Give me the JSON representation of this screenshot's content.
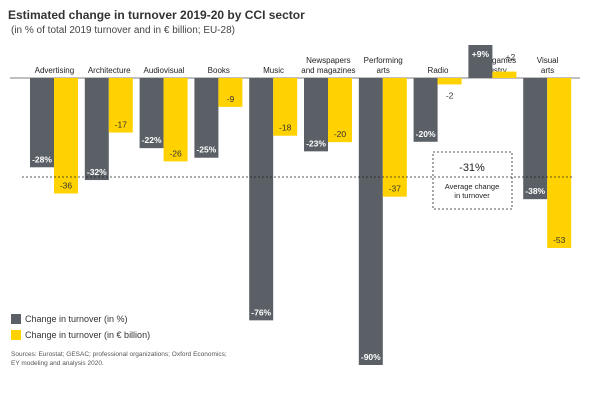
{
  "chart_data": {
    "type": "bar",
    "title": "Estimated change in turnover 2019-20 by CCI sector",
    "subtitle": "(in % of total 2019 turnover and in € billion; EU-28)",
    "categories": [
      "Advertising",
      "Architecture",
      "Audiovisual",
      "Books",
      "Music",
      "Newspapers and magazines",
      "Performing arts",
      "Radio",
      "Video games industry",
      "Visual arts"
    ],
    "category_lines": [
      [
        "Advertising"
      ],
      [
        "Architecture"
      ],
      [
        "Audiovisual"
      ],
      [
        "Books"
      ],
      [
        "Music"
      ],
      [
        "Newspapers",
        "and magazines"
      ],
      [
        "Performing",
        "arts"
      ],
      [
        "Radio"
      ],
      [
        "Video games",
        "industry"
      ],
      [
        "Visual",
        "arts"
      ]
    ],
    "series": [
      {
        "name": "Change in turnover (in %)",
        "color": "#5a6066",
        "values": [
          -28,
          -32,
          -22,
          -25,
          -76,
          -23,
          -90,
          -20,
          9,
          -38
        ],
        "labels": [
          "-28%",
          "-32%",
          "-22%",
          "-25%",
          "-76%",
          "-23%",
          "-90%",
          "-20%",
          "+9%",
          "-38%"
        ]
      },
      {
        "name": "Change in turnover (in € billion)",
        "color": "#ffd200",
        "values": [
          -36,
          -17,
          -26,
          -9,
          -18,
          -20,
          -37,
          -2,
          2,
          -53
        ],
        "labels": [
          "-36",
          "-17",
          "-26",
          "-9",
          "-18",
          "-20",
          "-37",
          "-2",
          "+2",
          "-53"
        ]
      }
    ],
    "ylim": [
      -92,
      10
    ],
    "average": {
      "value": -31,
      "label": "-31%",
      "text_lines": [
        "Average change",
        "in turnover"
      ]
    },
    "legend_position": "bottom-left"
  },
  "source_text": "Sources: Eurostat; GESAC; professional organizations; Oxford Economics; EY modeling and analysis 2020."
}
